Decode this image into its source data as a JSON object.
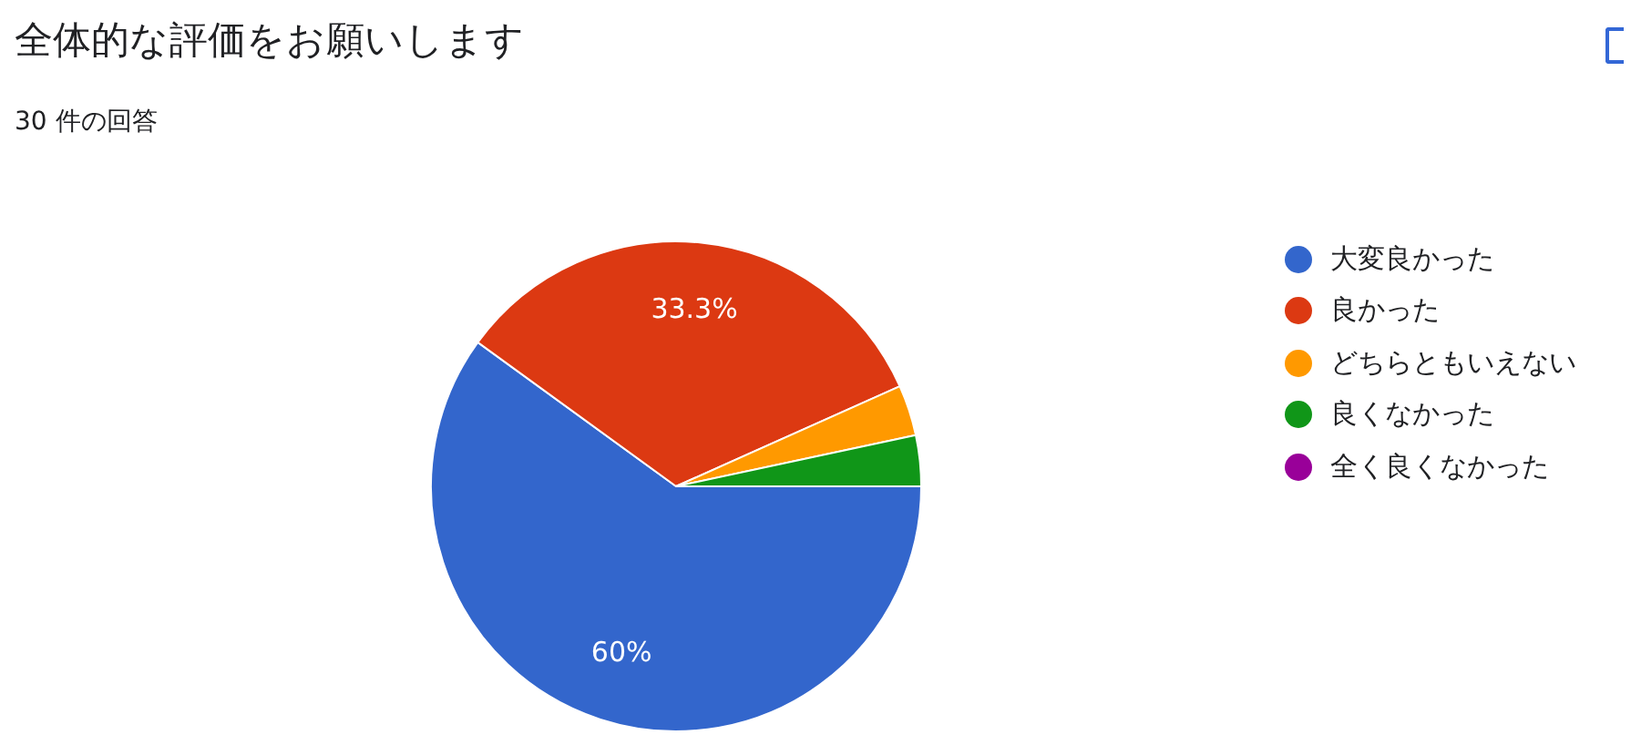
{
  "chart_data": {
    "type": "pie",
    "title": "全体的な評価をお願いします",
    "subtitle": "30 件の回答",
    "categories": [
      "大変良かった",
      "良かった",
      "どちらともいえない",
      "良くなかった",
      "全く良くなかった"
    ],
    "values": [
      60,
      33.3,
      3.35,
      3.35,
      0
    ],
    "colors": [
      "#3366cc",
      "#dc3912",
      "#ff9900",
      "#109618",
      "#990099"
    ],
    "value_labels": [
      "60%",
      "33.3%",
      null,
      null,
      null
    ],
    "legend": "right"
  }
}
